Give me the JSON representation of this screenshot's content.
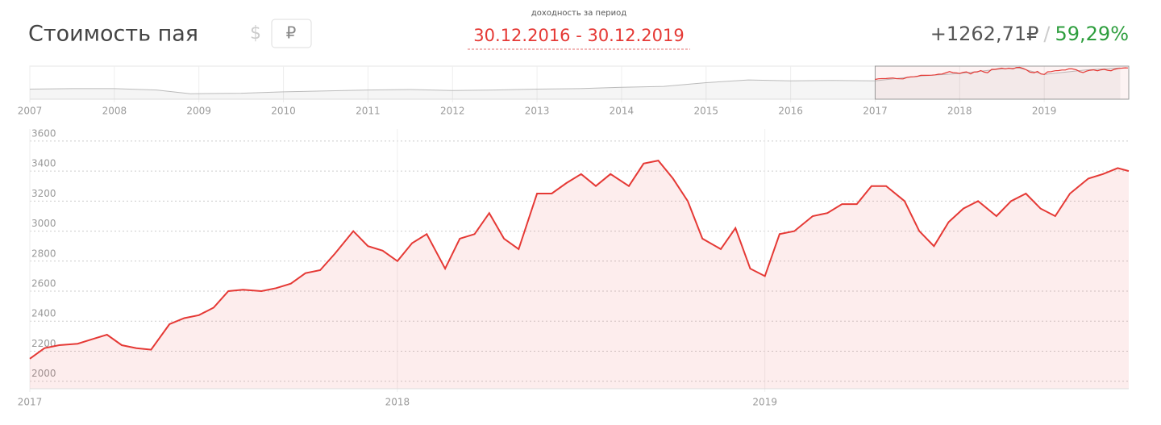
{
  "header": {
    "title": "Стоимость пая",
    "currency_usd": "$",
    "currency_rub": "₽",
    "period_caption": "доходность за период",
    "period": "30.12.2016 - 30.12.2019",
    "gain": "+1262,71₽",
    "separator": "/",
    "gain_pct": "59,29%"
  },
  "chart_data": [
    {
      "type": "area",
      "color": "#bbbbbb",
      "x": [
        2007,
        2007.5,
        2008,
        2008.5,
        2008.9,
        2009.5,
        2010,
        2010.5,
        2011,
        2011.5,
        2012,
        2012.5,
        2013,
        2013.5,
        2014,
        2014.5,
        2015,
        2015.5,
        2016,
        2016.5,
        2017,
        2017.5,
        2018,
        2018.5,
        2018.7,
        2019,
        2019.5,
        2019.9
      ],
      "values": [
        1100,
        1150,
        1150,
        1000,
        600,
        650,
        800,
        900,
        1000,
        1050,
        950,
        1000,
        1100,
        1150,
        1300,
        1400,
        1800,
        2100,
        2000,
        2050,
        2000,
        2500,
        2800,
        3300,
        3400,
        2700,
        3200,
        3400
      ],
      "xlim": [
        2007,
        2020
      ],
      "ylim": [
        0,
        3600
      ],
      "xticks": [
        2007,
        2008,
        2009,
        2010,
        2011,
        2012,
        2013,
        2014,
        2015,
        2016,
        2017,
        2018,
        2019
      ]
    },
    {
      "type": "line",
      "color": "#e53935",
      "grid": true,
      "x": [
        2017.0,
        2017.04,
        2017.08,
        2017.13,
        2017.17,
        2017.21,
        2017.25,
        2017.29,
        2017.33,
        2017.38,
        2017.42,
        2017.46,
        2017.5,
        2017.54,
        2017.58,
        2017.63,
        2017.67,
        2017.71,
        2017.75,
        2017.79,
        2017.83,
        2017.88,
        2017.92,
        2017.96,
        2018.0,
        2018.04,
        2018.08,
        2018.13,
        2018.17,
        2018.21,
        2018.25,
        2018.29,
        2018.33,
        2018.38,
        2018.42,
        2018.46,
        2018.5,
        2018.54,
        2018.58,
        2018.63,
        2018.67,
        2018.71,
        2018.75,
        2018.79,
        2018.83,
        2018.88,
        2018.92,
        2018.96,
        2019.0,
        2019.04,
        2019.08,
        2019.13,
        2019.17,
        2019.21,
        2019.25,
        2019.29,
        2019.33,
        2019.38,
        2019.42,
        2019.46,
        2019.5,
        2019.54,
        2019.58,
        2019.63,
        2019.67,
        2019.71,
        2019.75,
        2019.79,
        2019.83,
        2019.88,
        2019.92,
        2019.96,
        2019.99
      ],
      "values": [
        2150,
        2220,
        2240,
        2250,
        2280,
        2310,
        2240,
        2220,
        2210,
        2380,
        2420,
        2440,
        2490,
        2600,
        2610,
        2600,
        2620,
        2650,
        2720,
        2740,
        2850,
        3000,
        2900,
        2870,
        2800,
        2920,
        2980,
        2750,
        2950,
        2980,
        3120,
        2950,
        2880,
        3250,
        3250,
        3320,
        3380,
        3300,
        3380,
        3300,
        3450,
        3470,
        3350,
        3200,
        2950,
        2880,
        3020,
        2750,
        2700,
        2980,
        3000,
        3100,
        3120,
        3180,
        3180,
        3300,
        3300,
        3200,
        3000,
        2900,
        3060,
        3150,
        3200,
        3100,
        3200,
        3250,
        3150,
        3100,
        3250,
        3350,
        3380,
        3420,
        3400
      ],
      "xlim": [
        2017,
        2019.99
      ],
      "ylim": [
        1950,
        3680
      ],
      "xticks": [
        2017,
        2018,
        2019
      ],
      "yticks": [
        2000,
        2200,
        2400,
        2600,
        2800,
        3000,
        3200,
        3400,
        3600
      ]
    }
  ]
}
